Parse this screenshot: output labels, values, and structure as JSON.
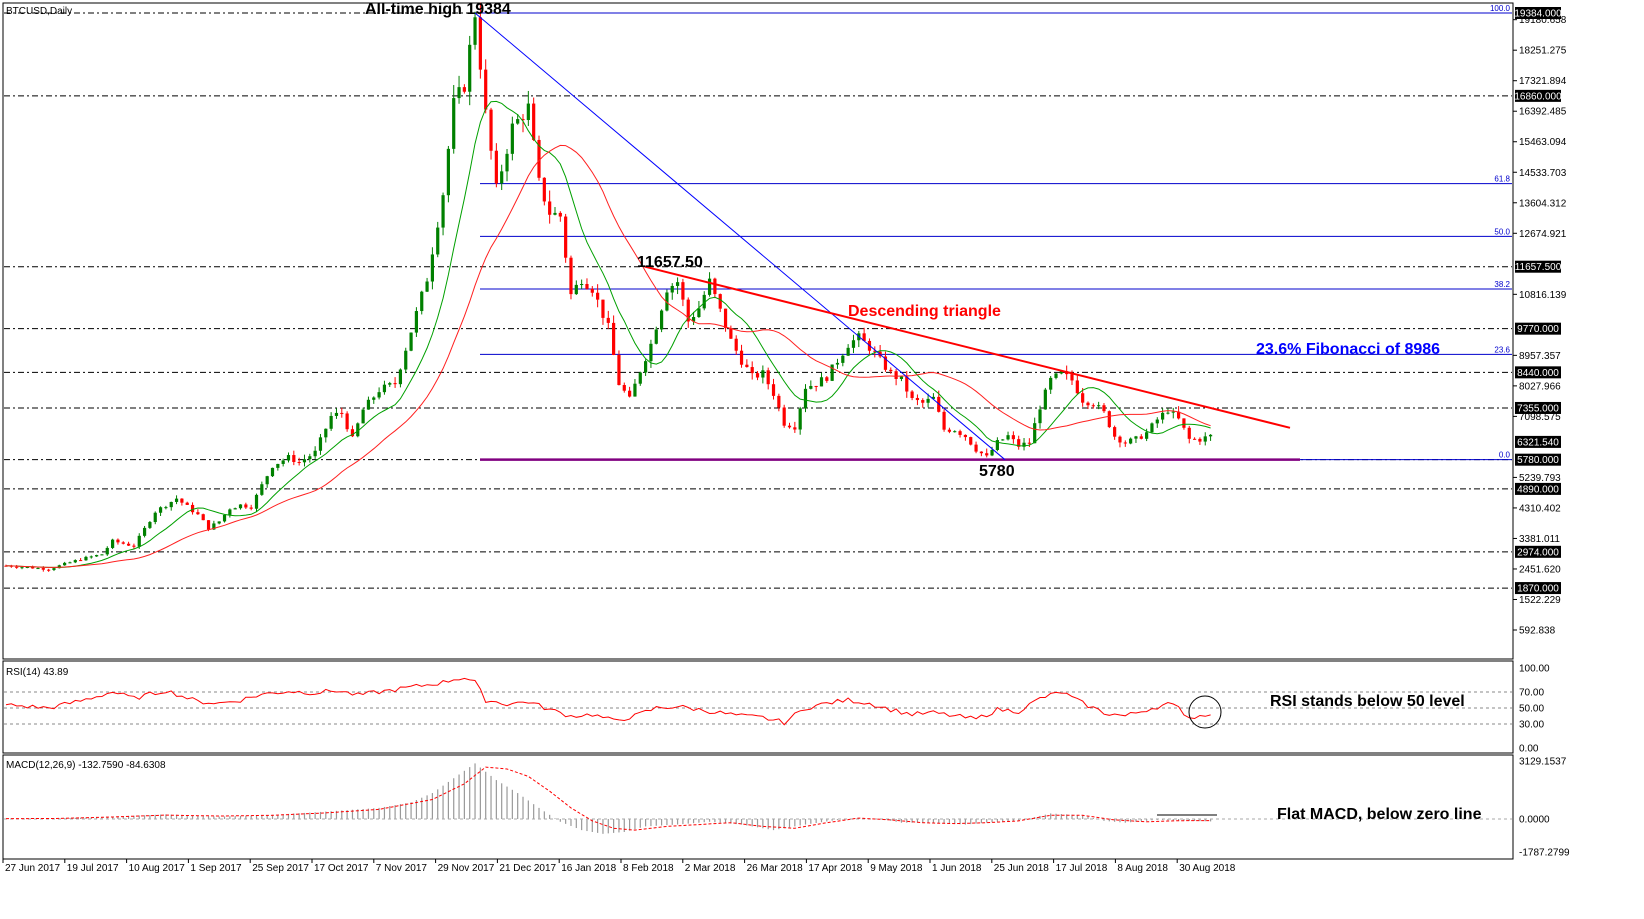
{
  "chart_data": [
    {
      "type": "candlestick",
      "instrument_label": "BTCUSD,Daily",
      "price_axis_ticks": [
        "19180.658",
        "18251.275",
        "17321.894",
        "16392.485",
        "15463.094",
        "14533.703",
        "13604.312",
        "12674.921",
        "10816.139",
        "8957.357",
        "8027.966",
        "7098.575",
        "5239.793",
        "4310.402",
        "3381.011",
        "2451.620",
        "1522.229",
        "592.838"
      ],
      "boxed_levels": [
        {
          "label": "19384.000",
          "value": 19384
        },
        {
          "label": "16860.000",
          "value": 16860
        },
        {
          "label": "11657.500",
          "value": 11657.5
        },
        {
          "label": "9770.000",
          "value": 9770
        },
        {
          "label": "8440.000",
          "value": 8440
        },
        {
          "label": "7355.000",
          "value": 7355
        },
        {
          "label": "6321.540",
          "value": 6321.54
        },
        {
          "label": "5780.000",
          "value": 5780
        },
        {
          "label": "4890.000",
          "value": 4890
        },
        {
          "label": "2974.000",
          "value": 2974
        },
        {
          "label": "1870.000",
          "value": 1870
        }
      ],
      "horizontal_levels": [
        19384,
        16860,
        11657.5,
        9770,
        8440,
        7355,
        5780,
        4890,
        2974,
        1870
      ],
      "fibonacci_levels": [
        {
          "label": "100.0",
          "value": 19384
        },
        {
          "label": "61.8",
          "value": 14186
        },
        {
          "label": "50.0",
          "value": 12582
        },
        {
          "label": "38.2",
          "value": 10978
        },
        {
          "label": "23.6",
          "value": 8986
        },
        {
          "label": "0.0",
          "value": 5780
        }
      ],
      "date_labels": [
        "27 Jun 2017",
        "19 Jul 2017",
        "10 Aug 2017",
        "1 Sep 2017",
        "25 Sep 2017",
        "17 Oct 2017",
        "7 Nov 2017",
        "29 Nov 2017",
        "21 Dec 2017",
        "16 Jan 2018",
        "8 Feb 2018",
        "2 Mar 2018",
        "26 Mar 2018",
        "17 Apr 2018",
        "9 May 2018",
        "1 Jun 2018",
        "25 Jun 2018",
        "17 Jul 2018",
        "8 Aug 2018",
        "30 Aug 2018"
      ],
      "price_path": [
        [
          0,
          2550
        ],
        [
          8,
          2450
        ],
        [
          14,
          2750
        ],
        [
          18,
          2900
        ],
        [
          20,
          3300
        ],
        [
          24,
          3150
        ],
        [
          28,
          4200
        ],
        [
          30,
          4400
        ],
        [
          32,
          4600
        ],
        [
          36,
          4100
        ],
        [
          38,
          3700
        ],
        [
          40,
          3900
        ],
        [
          42,
          4300
        ],
        [
          44,
          4400
        ],
        [
          46,
          4350
        ],
        [
          48,
          5000
        ],
        [
          50,
          5600
        ],
        [
          53,
          5850
        ],
        [
          55,
          5700
        ],
        [
          58,
          6000
        ],
        [
          61,
          7100
        ],
        [
          63,
          7200
        ],
        [
          65,
          6400
        ],
        [
          67,
          7300
        ],
        [
          70,
          7900
        ],
        [
          73,
          8100
        ],
        [
          76,
          9700
        ],
        [
          79,
          11300
        ],
        [
          82,
          13900
        ],
        [
          84,
          16600
        ],
        [
          86,
          17200
        ],
        [
          88,
          19384
        ],
        [
          90,
          16300
        ],
        [
          92,
          14000
        ],
        [
          95,
          15900
        ],
        [
          98,
          16500
        ],
        [
          100,
          14200
        ],
        [
          102,
          13300
        ],
        [
          104,
          13200
        ],
        [
          106,
          10800
        ],
        [
          108,
          11300
        ],
        [
          110,
          11000
        ],
        [
          113,
          9800
        ],
        [
          115,
          8100
        ],
        [
          117,
          7600
        ],
        [
          119,
          8500
        ],
        [
          121,
          9300
        ],
        [
          124,
          11000
        ],
        [
          126,
          11200
        ],
        [
          128,
          10000
        ],
        [
          130,
          10400
        ],
        [
          132,
          11200
        ],
        [
          134,
          10300
        ],
        [
          136,
          9400
        ],
        [
          138,
          8800
        ],
        [
          140,
          8300
        ],
        [
          142,
          8400
        ],
        [
          144,
          7800
        ],
        [
          146,
          6900
        ],
        [
          148,
          6800
        ],
        [
          150,
          8000
        ],
        [
          152,
          8100
        ],
        [
          154,
          8300
        ],
        [
          156,
          8800
        ],
        [
          158,
          9300
        ],
        [
          160,
          9500
        ],
        [
          162,
          9200
        ],
        [
          164,
          8800
        ],
        [
          166,
          8400
        ],
        [
          168,
          8200
        ],
        [
          170,
          7600
        ],
        [
          172,
          7500
        ],
        [
          174,
          7650
        ],
        [
          176,
          6700
        ],
        [
          178,
          6700
        ],
        [
          180,
          6500
        ],
        [
          182,
          6100
        ],
        [
          184,
          5850
        ],
        [
          186,
          6300
        ],
        [
          188,
          6500
        ],
        [
          190,
          6200
        ],
        [
          192,
          6300
        ],
        [
          194,
          7400
        ],
        [
          196,
          8200
        ],
        [
          198,
          8400
        ],
        [
          200,
          8200
        ],
        [
          202,
          7600
        ],
        [
          204,
          7500
        ],
        [
          206,
          7200
        ],
        [
          208,
          6500
        ],
        [
          210,
          6300
        ],
        [
          212,
          6400
        ],
        [
          214,
          6600
        ],
        [
          216,
          7000
        ],
        [
          218,
          7300
        ],
        [
          220,
          7000
        ],
        [
          222,
          6400
        ],
        [
          224,
          6400
        ],
        [
          226,
          6500
        ]
      ],
      "descending_triangle_label": "Descending triangle",
      "fib_annotation": "23.6% Fibonacci of 8986",
      "ath_annotation": "All-time high 19384",
      "peak_annotation": "11657.50",
      "low_annotation": "5780"
    },
    {
      "type": "line",
      "title": "RSI(14) 43.89",
      "y_ticks": [
        "100.00",
        "70.00",
        "50.00",
        "30.00",
        "0.00"
      ],
      "levels": [
        70,
        50,
        30
      ],
      "values_path": [
        [
          0,
          54
        ],
        [
          8,
          50
        ],
        [
          14,
          59
        ],
        [
          20,
          70
        ],
        [
          24,
          62
        ],
        [
          30,
          72
        ],
        [
          36,
          58
        ],
        [
          40,
          56
        ],
        [
          44,
          60
        ],
        [
          48,
          67
        ],
        [
          53,
          71
        ],
        [
          58,
          69
        ],
        [
          62,
          72
        ],
        [
          66,
          66
        ],
        [
          70,
          70
        ],
        [
          74,
          74
        ],
        [
          78,
          78
        ],
        [
          82,
          82
        ],
        [
          84,
          86
        ],
        [
          86,
          88
        ],
        [
          88,
          82
        ],
        [
          90,
          60
        ],
        [
          94,
          55
        ],
        [
          98,
          58
        ],
        [
          102,
          48
        ],
        [
          106,
          40
        ],
        [
          110,
          42
        ],
        [
          114,
          34
        ],
        [
          118,
          40
        ],
        [
          122,
          50
        ],
        [
          126,
          52
        ],
        [
          130,
          48
        ],
        [
          134,
          44
        ],
        [
          138,
          40
        ],
        [
          142,
          38
        ],
        [
          146,
          32
        ],
        [
          150,
          50
        ],
        [
          154,
          56
        ],
        [
          158,
          60
        ],
        [
          162,
          56
        ],
        [
          166,
          48
        ],
        [
          170,
          42
        ],
        [
          174,
          44
        ],
        [
          178,
          40
        ],
        [
          182,
          36
        ],
        [
          186,
          48
        ],
        [
          190,
          46
        ],
        [
          194,
          62
        ],
        [
          198,
          70
        ],
        [
          202,
          56
        ],
        [
          206,
          44
        ],
        [
          210,
          40
        ],
        [
          214,
          48
        ],
        [
          218,
          55
        ],
        [
          220,
          50
        ],
        [
          222,
          38
        ],
        [
          224,
          40
        ],
        [
          226,
          44
        ]
      ],
      "annotation": "RSI stands below 50 level"
    },
    {
      "type": "histogram",
      "title": "MACD(12,26,9) -132.7590 -84.6308",
      "y_ticks": [
        "3129.1537",
        "0.0000",
        "-1787.2799"
      ],
      "histogram_path": [
        [
          0,
          30
        ],
        [
          10,
          40
        ],
        [
          20,
          130
        ],
        [
          30,
          250
        ],
        [
          40,
          130
        ],
        [
          50,
          220
        ],
        [
          60,
          400
        ],
        [
          70,
          600
        ],
        [
          76,
          900
        ],
        [
          80,
          1400
        ],
        [
          84,
          2200
        ],
        [
          88,
          3000
        ],
        [
          92,
          2100
        ],
        [
          96,
          1400
        ],
        [
          100,
          600
        ],
        [
          104,
          -150
        ],
        [
          108,
          -600
        ],
        [
          112,
          -800
        ],
        [
          116,
          -700
        ],
        [
          120,
          -400
        ],
        [
          126,
          -300
        ],
        [
          132,
          -150
        ],
        [
          138,
          -300
        ],
        [
          144,
          -600
        ],
        [
          150,
          -300
        ],
        [
          156,
          -50
        ],
        [
          160,
          50
        ],
        [
          164,
          0
        ],
        [
          168,
          -200
        ],
        [
          174,
          -200
        ],
        [
          180,
          -300
        ],
        [
          186,
          -150
        ],
        [
          190,
          -100
        ],
        [
          196,
          300
        ],
        [
          202,
          200
        ],
        [
          206,
          -100
        ],
        [
          210,
          -200
        ],
        [
          216,
          -50
        ],
        [
          222,
          -100
        ],
        [
          226,
          -130
        ]
      ],
      "signal_path": [
        [
          0,
          20
        ],
        [
          10,
          30
        ],
        [
          20,
          110
        ],
        [
          30,
          210
        ],
        [
          40,
          160
        ],
        [
          50,
          200
        ],
        [
          60,
          330
        ],
        [
          70,
          520
        ],
        [
          80,
          1050
        ],
        [
          86,
          1900
        ],
        [
          90,
          2800
        ],
        [
          94,
          2700
        ],
        [
          98,
          2300
        ],
        [
          102,
          1500
        ],
        [
          106,
          600
        ],
        [
          110,
          -100
        ],
        [
          114,
          -500
        ],
        [
          118,
          -600
        ],
        [
          124,
          -400
        ],
        [
          130,
          -300
        ],
        [
          136,
          -200
        ],
        [
          142,
          -400
        ],
        [
          148,
          -500
        ],
        [
          154,
          -200
        ],
        [
          160,
          50
        ],
        [
          166,
          -50
        ],
        [
          172,
          -200
        ],
        [
          178,
          -250
        ],
        [
          184,
          -200
        ],
        [
          190,
          -100
        ],
        [
          196,
          200
        ],
        [
          202,
          200
        ],
        [
          208,
          -50
        ],
        [
          214,
          -150
        ],
        [
          220,
          -90
        ],
        [
          226,
          -85
        ]
      ],
      "annotation": "Flat MACD, below zero line"
    }
  ],
  "colors": {
    "bull_candle": "#008000",
    "bear_candle": "#ff0000",
    "ma_fast": "#00a000",
    "ma_slow": "#ff2020",
    "trend_red": "#ff0000",
    "trend_blue": "#0000ff",
    "support_line": "#800080"
  }
}
